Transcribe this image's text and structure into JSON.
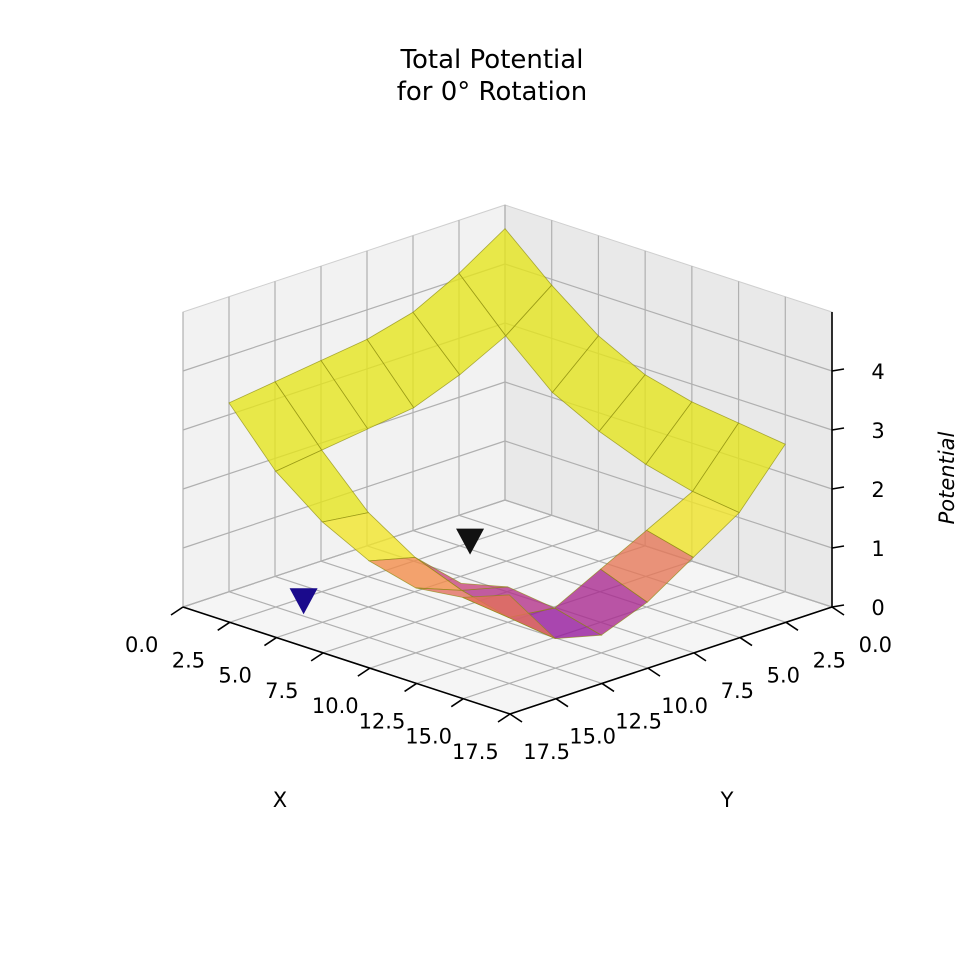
{
  "chart_data": {
    "type": "surface3d",
    "title_lines": [
      "Total Potential",
      "for 0° Rotation"
    ],
    "xlabel": "X",
    "ylabel": "Y",
    "zlabel": "Potential",
    "xlim": [
      0,
      17.5
    ],
    "ylim": [
      0,
      17.5
    ],
    "zlim": [
      0,
      5
    ],
    "xticks": [
      "0.0",
      "2.5",
      "5.0",
      "7.5",
      "10.0",
      "12.5",
      "15.0",
      "17.5"
    ],
    "yticks": [
      "0.0",
      "2.5",
      "5.0",
      "7.5",
      "10.0",
      "12.5",
      "15.0",
      "17.5"
    ],
    "zticks": [
      "0",
      "1",
      "2",
      "3",
      "4"
    ],
    "grid": true,
    "colormap": "plasma",
    "surface_color_high": "#e6e619",
    "surface_edge_color": "#8c8c10",
    "trough_color": "#7a0a8c",
    "x": [
      0,
      2.5,
      5,
      7.5,
      10,
      12.5,
      15
    ],
    "y": [
      0,
      2.5,
      5,
      7.5,
      10,
      12.5,
      15
    ],
    "z_grid": [
      [
        4.6,
        3.9,
        3.3,
        2.9,
        2.7,
        2.6,
        2.5
      ],
      [
        4.1,
        3.3,
        2.6,
        2.2,
        1.9,
        1.7,
        1.6
      ],
      [
        3.7,
        2.9,
        null,
        null,
        null,
        1.3,
        1.1
      ],
      [
        3.5,
        2.6,
        null,
        null,
        null,
        0.9,
        0.6
      ],
      [
        3.4,
        2.5,
        null,
        0.4,
        0.6,
        0.5,
        0.3
      ],
      [
        3.3,
        2.4,
        1.6,
        1.1,
        0.8,
        0.6,
        0.5
      ],
      [
        3.2,
        2.3,
        1.7,
        1.3,
        1.1,
        1.2,
        1.5
      ]
    ],
    "point_marks": [
      {
        "name": "black-cone",
        "color": "#111111",
        "x": 8.5,
        "y": 6.5,
        "z": 0.9
      },
      {
        "name": "blue-cone",
        "color": "#1a0a8c",
        "x": 14.5,
        "y": 3.5,
        "z": 0.2
      }
    ]
  }
}
